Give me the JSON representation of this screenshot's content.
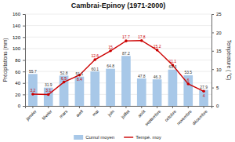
{
  "chart_data": {
    "type": "bar",
    "title": "Cambrai-Epinoy (1971-2000)",
    "categories": [
      "janvier",
      "février",
      "mars",
      "avril",
      "mai",
      "juin",
      "juillet",
      "août",
      "septembre",
      "octobre",
      "novembre",
      "décembre"
    ],
    "series": [
      {
        "name": "Cumul moyen",
        "type": "bar",
        "color": "#a8c8e8",
        "values": [
          55.7,
          31.9,
          52.8,
          51.1,
          60.1,
          64.8,
          87.2,
          47.8,
          46.3,
          63.3,
          53.5,
          27.9
        ]
      },
      {
        "name": "Tempé. moy",
        "type": "line",
        "axis": "y2",
        "color": "#cc0000",
        "marker": "circle",
        "values": [
          3.2,
          3.1,
          6.5,
          8.4,
          12.6,
          15,
          17.7,
          17.8,
          15.2,
          11.1,
          6,
          4
        ]
      }
    ],
    "ylabel": "Précipitations (mm)",
    "y2label": "Température ( °C)",
    "ylim": [
      0,
      160
    ],
    "yticks": [
      0,
      20,
      40,
      60,
      80,
      100,
      120,
      140,
      160
    ],
    "y2lim": [
      0,
      25
    ],
    "y2ticks": [
      0,
      5,
      10,
      15,
      20,
      25
    ],
    "grid": true,
    "data_labels": true,
    "legend": "bottom"
  }
}
